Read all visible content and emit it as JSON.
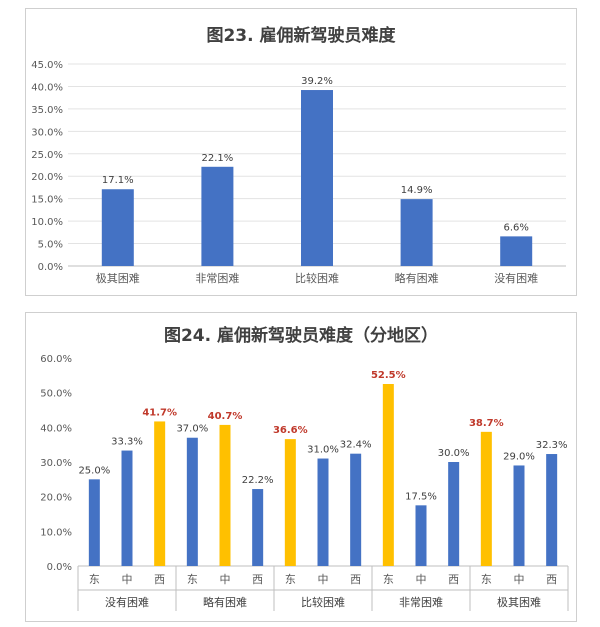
{
  "chart_data": [
    {
      "type": "bar",
      "title": "图23. 雇佣新驾驶员难度",
      "categories": [
        "极其困难",
        "非常困难",
        "比较困难",
        "略有困难",
        "没有困难"
      ],
      "values": [
        17.1,
        22.1,
        39.2,
        14.9,
        6.6
      ],
      "value_labels": [
        "17.1%",
        "22.1%",
        "39.2%",
        "14.9%",
        "6.6%"
      ],
      "ylim": [
        0,
        45
      ],
      "y_ticks": [
        "0.0%",
        "5.0%",
        "10.0%",
        "15.0%",
        "20.0%",
        "25.0%",
        "30.0%",
        "35.0%",
        "40.0%",
        "45.0%"
      ],
      "grid": true,
      "colors": {
        "bar": "#4472C4"
      }
    },
    {
      "type": "bar",
      "title": "图24. 雇佣新驾驶员难度（分地区）",
      "groups": [
        "没有困难",
        "略有困难",
        "比较困难",
        "非常困难",
        "极其困难"
      ],
      "sub_categories": [
        "东",
        "中",
        "西"
      ],
      "values": [
        [
          25.0,
          33.3,
          41.7
        ],
        [
          37.0,
          40.7,
          22.2
        ],
        [
          36.6,
          31.0,
          32.4
        ],
        [
          52.5,
          17.5,
          30.0
        ],
        [
          38.7,
          29.0,
          32.3
        ]
      ],
      "value_labels": [
        [
          "25.0%",
          "33.3%",
          "41.7%"
        ],
        [
          "37.0%",
          "40.7%",
          "22.2%"
        ],
        [
          "36.6%",
          "31.0%",
          "32.4%"
        ],
        [
          "52.5%",
          "17.5%",
          "30.0%"
        ],
        [
          "38.7%",
          "29.0%",
          "32.3%"
        ]
      ],
      "highlight": [
        [
          false,
          false,
          true
        ],
        [
          false,
          true,
          false
        ],
        [
          true,
          false,
          false
        ],
        [
          true,
          false,
          false
        ],
        [
          true,
          false,
          false
        ]
      ],
      "ylim": [
        0,
        60
      ],
      "y_ticks": [
        "0.0%",
        "10.0%",
        "20.0%",
        "30.0%",
        "40.0%",
        "50.0%",
        "60.0%"
      ],
      "grid": false,
      "colors": {
        "bar": "#4472C4",
        "highlight_bar": "#FFC000",
        "highlight_label": "#C0392B",
        "label": "#404040"
      }
    }
  ]
}
